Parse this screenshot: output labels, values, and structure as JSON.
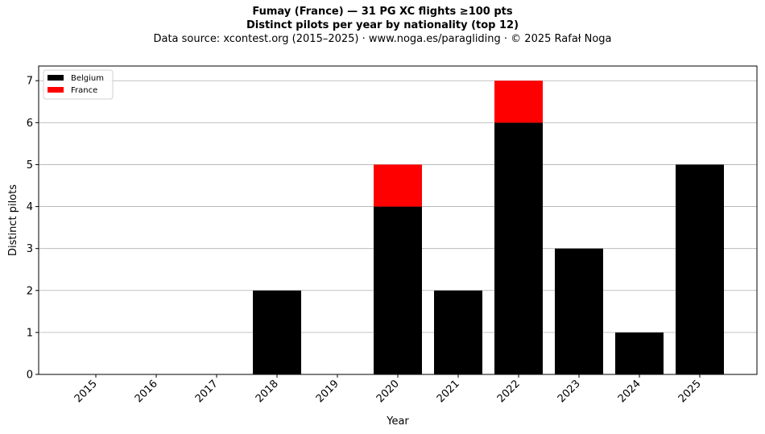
{
  "header": {
    "title_line1": "Fumay (France)  —  31 PG XC flights ≥100 pts",
    "title_line2": "Distinct pilots per year by nationality (top 12)",
    "source_line": "Data source: xcontest.org (2015–2025)  ·  www.noga.es/paragliding  ·  © 2025 Rafał Noga"
  },
  "chart_data": {
    "type": "bar",
    "stacked": true,
    "categories": [
      "2015",
      "2016",
      "2017",
      "2018",
      "2019",
      "2020",
      "2021",
      "2022",
      "2023",
      "2024",
      "2025"
    ],
    "series": [
      {
        "name": "Belgium",
        "color": "#000000",
        "values": [
          0,
          0,
          0,
          2,
          0,
          4,
          2,
          6,
          3,
          1,
          5
        ]
      },
      {
        "name": "France",
        "color": "#ff0000",
        "values": [
          0,
          0,
          0,
          0,
          0,
          1,
          0,
          1,
          0,
          0,
          0
        ]
      }
    ],
    "xlabel": "Year",
    "ylabel": "Distinct pilots",
    "ylim": [
      0,
      7.35
    ],
    "yticks": [
      0,
      1,
      2,
      3,
      4,
      5,
      6,
      7
    ],
    "grid": "horizontal",
    "legend_position": "top-left"
  }
}
